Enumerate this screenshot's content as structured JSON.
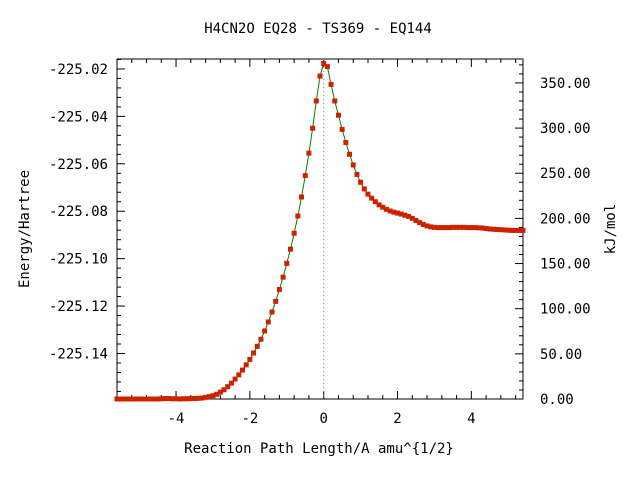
{
  "chart_data": {
    "type": "line",
    "title": "H4CN2O   EQ28 - TS369 - EQ144",
    "xlabel": "Reaction Path Length/A amu^{1/2}",
    "ylabel": "Energy/Hartree",
    "y2label": "kJ/mol",
    "xlim": [
      -5.6,
      5.4
    ],
    "ylim": [
      -225.1592,
      -225.0158
    ],
    "y2lim": [
      0,
      376.5
    ],
    "x_ticks": [
      -4,
      -2,
      0,
      2,
      4
    ],
    "x_tick_labels": [
      "-4",
      "-2",
      "0",
      "2",
      "4"
    ],
    "y_ticks": [
      -225.02,
      -225.04,
      -225.06,
      -225.08,
      -225.1,
      -225.12,
      -225.14
    ],
    "y_tick_labels": [
      "-225.02",
      "-225.04",
      "-225.06",
      "-225.08",
      "-225.10",
      "-225.12",
      "-225.14"
    ],
    "y2_ticks": [
      350,
      300,
      250,
      200,
      150,
      100,
      50,
      0
    ],
    "y2_tick_labels": [
      "350.00",
      "300.00",
      "250.00",
      "200.00",
      "150.00",
      "100.00",
      "50.00",
      "0.00"
    ],
    "ts_marker_x": 0,
    "grid": false,
    "line_color": "#008000",
    "marker_color": "#cc2200",
    "series": [
      {
        "x": [
          -5.6,
          -5.5,
          -5.4,
          -5.3,
          -5.2,
          -5.1,
          -5.0,
          -4.9,
          -4.8,
          -4.7,
          -4.6,
          -4.5,
          -4.4,
          -4.3,
          -4.2,
          -4.1,
          -4.0,
          -3.9,
          -3.8,
          -3.7,
          -3.6,
          -3.5,
          -3.4,
          -3.3,
          -3.2,
          -3.1,
          -3.0,
          -2.9,
          -2.8,
          -2.7,
          -2.6,
          -2.5,
          -2.4,
          -2.3,
          -2.2,
          -2.1,
          -2.0,
          -1.9,
          -1.8,
          -1.7,
          -1.6,
          -1.5,
          -1.4,
          -1.3,
          -1.2,
          -1.1,
          -1.0,
          -0.9,
          -0.8,
          -0.7,
          -0.6,
          -0.5,
          -0.4,
          -0.3,
          -0.2,
          -0.1,
          0.0,
          0.1,
          0.2,
          0.3,
          0.4,
          0.5,
          0.6,
          0.7,
          0.8,
          0.9,
          1.0,
          1.1,
          1.2,
          1.3,
          1.4,
          1.5,
          1.6,
          1.7,
          1.8,
          1.9,
          2.0,
          2.1,
          2.2,
          2.3,
          2.4,
          2.5,
          2.6,
          2.7,
          2.8,
          2.9,
          3.0,
          3.1,
          3.2,
          3.3,
          3.4,
          3.5,
          3.6,
          3.7,
          3.8,
          3.9,
          4.0,
          4.1,
          4.2,
          4.3,
          4.4,
          4.5,
          4.6,
          4.7,
          4.8,
          4.9,
          5.0,
          5.1,
          5.2,
          5.3,
          5.4
        ],
        "y": [
          -225.1592,
          -225.1592,
          -225.1592,
          -225.1592,
          -225.1592,
          -225.1592,
          -225.1592,
          -225.1592,
          -225.1592,
          -225.1592,
          -225.1592,
          -225.1592,
          -225.1591,
          -225.159,
          -225.159,
          -225.1591,
          -225.1591,
          -225.1592,
          -225.1591,
          -225.1591,
          -225.159,
          -225.159,
          -225.1589,
          -225.1588,
          -225.1585,
          -225.1582,
          -225.1578,
          -225.1572,
          -225.1563,
          -225.1553,
          -225.154,
          -225.1525,
          -225.1508,
          -225.149,
          -225.147,
          -225.1448,
          -225.1425,
          -225.1398,
          -225.137,
          -225.134,
          -225.1305,
          -225.1267,
          -225.1225,
          -225.118,
          -225.113,
          -225.1078,
          -225.102,
          -225.096,
          -225.0893,
          -225.082,
          -225.074,
          -225.065,
          -225.0555,
          -225.045,
          -225.0335,
          -225.023,
          -225.0177,
          -225.019,
          -225.0265,
          -225.0335,
          -225.0395,
          -225.0455,
          -225.051,
          -225.056,
          -225.0605,
          -225.0645,
          -225.0678,
          -225.0706,
          -225.0728,
          -225.0745,
          -225.076,
          -225.0773,
          -225.0783,
          -225.0792,
          -225.0799,
          -225.0804,
          -225.0808,
          -225.0812,
          -225.0817,
          -225.0822,
          -225.083,
          -225.0839,
          -225.0848,
          -225.0856,
          -225.0862,
          -225.0866,
          -225.0868,
          -225.0869,
          -225.0869,
          -225.0869,
          -225.0869,
          -225.0868,
          -225.0868,
          -225.0868,
          -225.0868,
          -225.0869,
          -225.0869,
          -225.0869,
          -225.087,
          -225.0871,
          -225.0873,
          -225.0875,
          -225.0876,
          -225.0877,
          -225.0878,
          -225.0879,
          -225.088,
          -225.0881,
          -225.0881,
          -225.0881,
          -225.0881
        ]
      }
    ]
  }
}
